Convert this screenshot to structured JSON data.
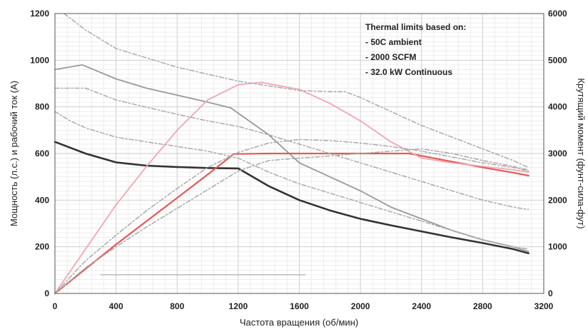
{
  "chart_data": {
    "type": "line",
    "xlabel": "Частота вращения (об/мин)",
    "ylabel_left": "Мощность (л.с.) и рабочий ток (А)",
    "ylabel_right": "Крутящий момент (фунт-сила-фут)",
    "xlim": [
      0,
      3200
    ],
    "ylim_left": [
      0,
      1200
    ],
    "ylim_right": [
      0,
      6000
    ],
    "x_ticks": [
      "0",
      "400",
      "800",
      "1200",
      "1600",
      "2000",
      "2400",
      "2800",
      "3200"
    ],
    "y_left_ticks": [
      "0",
      "200",
      "400",
      "600",
      "800",
      "1000",
      "1200"
    ],
    "y_right_ticks": [
      "0",
      "1000",
      "2000",
      "3000",
      "4000",
      "5000",
      "6000"
    ],
    "grid": true,
    "annotation": {
      "title": "Thermal limits based on:",
      "lines": [
        "- 50C ambient",
        "- 2000 SCFM",
        "- 32.0 kW Continuous"
      ]
    },
    "series": [
      {
        "axis": "right",
        "color": "#333333",
        "width": 2.6,
        "dash": "",
        "x": [
          0,
          200,
          400,
          600,
          800,
          1000,
          1200,
          1400,
          1600,
          1800,
          2000,
          2200,
          2400,
          2600,
          2800,
          3000,
          3100
        ],
        "y": [
          3250,
          3000,
          2810,
          2740,
          2710,
          2690,
          2680,
          2300,
          2000,
          1780,
          1600,
          1460,
          1330,
          1200,
          1080,
          950,
          860
        ]
      },
      {
        "axis": "right",
        "color": "#999999",
        "width": 1.8,
        "dash": "",
        "x": [
          0,
          180,
          400,
          600,
          800,
          1000,
          1150,
          1400,
          1600,
          1800,
          2000,
          2200,
          2400,
          2600,
          2800,
          3000,
          3100
        ],
        "y": [
          4800,
          4900,
          4600,
          4400,
          4250,
          4100,
          3980,
          3400,
          2800,
          2500,
          2200,
          1850,
          1600,
          1350,
          1150,
          1000,
          900
        ]
      },
      {
        "axis": "left",
        "color": "#e05a5a",
        "width": 2.2,
        "dash": "",
        "x": [
          0,
          200,
          400,
          600,
          800,
          1000,
          1170,
          1400,
          1600,
          1800,
          2000,
          2200,
          2320,
          2600,
          2800,
          3000,
          3100
        ],
        "y": [
          0,
          105,
          210,
          310,
          410,
          510,
          598,
          600,
          600,
          600,
          600,
          600,
          600,
          565,
          540,
          518,
          505
        ]
      },
      {
        "axis": "left",
        "color": "#f2a6b0",
        "width": 1.8,
        "dash": "",
        "x": [
          0,
          200,
          400,
          600,
          800,
          1000,
          1200,
          1350,
          1600,
          1800,
          2000,
          2200,
          2400,
          2600,
          2800,
          3000,
          3100
        ],
        "y": [
          0,
          190,
          380,
          545,
          700,
          830,
          895,
          905,
          875,
          815,
          740,
          650,
          580,
          560,
          545,
          530,
          520
        ]
      },
      {
        "axis": "left",
        "color": "#aaaaaa",
        "width": 1.5,
        "dash": "6 3 2 3",
        "x": [
          0,
          200,
          400,
          600,
          800,
          1000,
          1200,
          1400,
          1600,
          1800,
          2000,
          2200,
          2400,
          2600,
          2800,
          3000,
          3100
        ],
        "y": [
          0,
          140,
          250,
          355,
          450,
          540,
          605,
          645,
          660,
          655,
          645,
          630,
          610,
          585,
          560,
          540,
          525
        ]
      },
      {
        "axis": "left",
        "color": "#aaaaaa",
        "width": 1.5,
        "dash": "6 3 2 3",
        "x": [
          0,
          200,
          400,
          600,
          800,
          1000,
          1200,
          1400,
          1600,
          1800,
          2000,
          2200,
          2400,
          2600,
          2800,
          3000,
          3100
        ],
        "y": [
          0,
          110,
          200,
          285,
          365,
          445,
          525,
          570,
          580,
          590,
          600,
          610,
          620,
          600,
          570,
          545,
          530
        ]
      },
      {
        "axis": "right",
        "color": "#aaaaaa",
        "width": 1.5,
        "dash": "6 3 2 3",
        "x": [
          0,
          100,
          200,
          400,
          600,
          800,
          1000,
          1200,
          1400,
          1600,
          1800,
          2000,
          2200,
          2400,
          2600,
          2800,
          3000,
          3100
        ],
        "y": [
          4400,
          4400,
          4400,
          4150,
          3990,
          3840,
          3700,
          3580,
          3400,
          3200,
          3000,
          2800,
          2600,
          2400,
          2200,
          2000,
          1850,
          1800
        ]
      },
      {
        "axis": "right",
        "color": "#aaaaaa",
        "width": 1.5,
        "dash": "6 3 2 3",
        "x": [
          0,
          100,
          200,
          400,
          600,
          800,
          1000,
          1200,
          1400,
          1600,
          1800,
          2000,
          2200,
          2400,
          2600,
          2800,
          3000,
          3100
        ],
        "y": [
          3900,
          3700,
          3550,
          3350,
          3250,
          3150,
          3050,
          2900,
          2600,
          2350,
          2150,
          1950,
          1750,
          1550,
          1350,
          1150,
          1000,
          950
        ]
      },
      {
        "axis": "left",
        "color": "#aaaaaa",
        "width": 1.5,
        "dash": "6 3 2 3",
        "x": [
          60,
          200,
          400,
          600,
          800,
          1000,
          1200,
          1400,
          1600,
          1800,
          1900,
          2000,
          2200,
          2400,
          2600,
          2800,
          3000,
          3100
        ],
        "y": [
          1200,
          1130,
          1050,
          1010,
          970,
          940,
          910,
          890,
          870,
          865,
          865,
          840,
          780,
          720,
          670,
          620,
          570,
          540
        ]
      },
      {
        "axis": "left",
        "color": "#999999",
        "width": 1.0,
        "dash": "",
        "x": [
          300,
          1640
        ],
        "y": [
          80,
          80
        ]
      }
    ]
  }
}
